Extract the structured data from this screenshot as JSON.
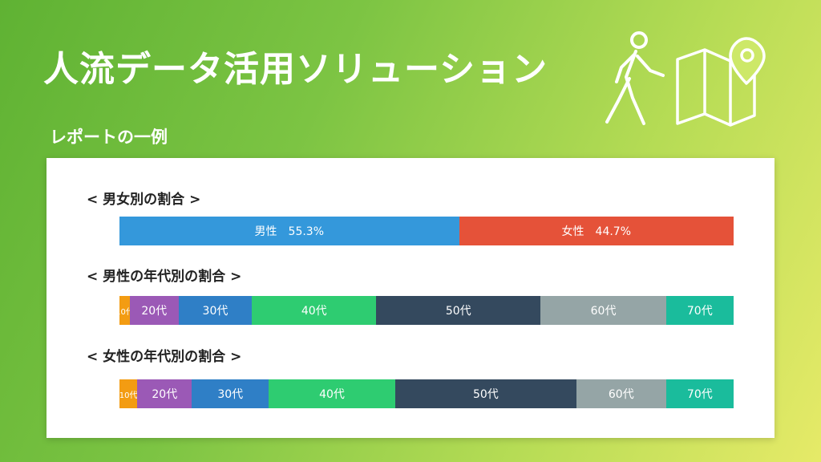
{
  "header": {
    "title": "人流データ活用ソリューション",
    "subtitle": "レポートの一例"
  },
  "icons": [
    "walking-person-icon",
    "map-pin-icon"
  ],
  "chart_data": [
    {
      "type": "bar",
      "title": "< 男女別の割合 >",
      "unit": "%",
      "segments": [
        {
          "name": "男性",
          "label": "男性　55.3%",
          "value": 55.3,
          "color": "#3498db"
        },
        {
          "name": "女性",
          "label": "女性　44.7%",
          "value": 44.7,
          "color": "#e55239"
        }
      ]
    },
    {
      "type": "bar",
      "title": "< 男性の年代別の割合 >",
      "segments": [
        {
          "name": "10代",
          "label": "10代",
          "value": 1.7,
          "color": "#f39c12"
        },
        {
          "name": "20代",
          "label": "20代",
          "value": 7.9,
          "color": "#9b59b6"
        },
        {
          "name": "30代",
          "label": "30代",
          "value": 12.0,
          "color": "#2f7fc6"
        },
        {
          "name": "40代",
          "label": "40代",
          "value": 20.2,
          "color": "#2ecc71"
        },
        {
          "name": "50代",
          "label": "50代",
          "value": 26.8,
          "color": "#34495e"
        },
        {
          "name": "60代",
          "label": "60代",
          "value": 20.4,
          "color": "#95a5a6"
        },
        {
          "name": "70代",
          "label": "70代",
          "value": 11.0,
          "color": "#1abc9c"
        }
      ]
    },
    {
      "type": "bar",
      "title": "< 女性の年代別の割合 >",
      "segments": [
        {
          "name": "10代",
          "label": "10代",
          "value": 2.9,
          "color": "#f39c12"
        },
        {
          "name": "20代",
          "label": "20代",
          "value": 8.9,
          "color": "#9b59b6"
        },
        {
          "name": "30代",
          "label": "30代",
          "value": 12.5,
          "color": "#2f7fc6"
        },
        {
          "name": "40代",
          "label": "40代",
          "value": 20.6,
          "color": "#2ecc71"
        },
        {
          "name": "50代",
          "label": "50代",
          "value": 29.5,
          "color": "#34495e"
        },
        {
          "name": "60代",
          "label": "60代",
          "value": 14.6,
          "color": "#95a5a6"
        },
        {
          "name": "70代",
          "label": "70代",
          "value": 11.0,
          "color": "#1abc9c"
        }
      ]
    }
  ]
}
